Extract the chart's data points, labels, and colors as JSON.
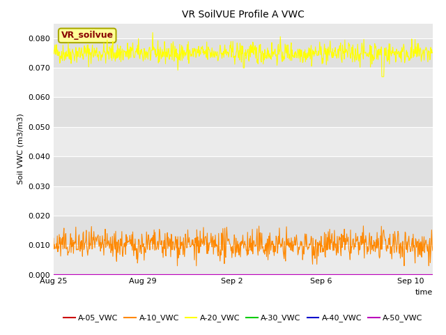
{
  "title": "VR SoilVUE Profile A VWC",
  "ylabel": "Soil VWC (m3/m3)",
  "xlabel": "time",
  "ylim": [
    0.0,
    0.085
  ],
  "yticks": [
    0.0,
    0.01,
    0.02,
    0.03,
    0.04,
    0.05,
    0.06,
    0.07,
    0.08
  ],
  "xtick_labels": [
    "Aug 25",
    "Aug 29",
    "Sep 2",
    "Sep 6",
    "Sep 10"
  ],
  "xtick_positions": [
    0,
    4,
    8,
    12,
    16
  ],
  "xlim": [
    0,
    17
  ],
  "legend_labels": [
    "A-05_VWC",
    "A-10_VWC",
    "A-20_VWC",
    "A-30_VWC",
    "A-40_VWC",
    "A-50_VWC"
  ],
  "legend_colors": [
    "#cc0000",
    "#ff8800",
    "#ffff00",
    "#00cc00",
    "#0000cc",
    "#bb00bb"
  ],
  "annotation_text": "VR_soilvue",
  "annotation_color": "#880000",
  "annotation_bg": "#ffff99",
  "annotation_edge": "#aaaa00",
  "bg_color": "#e8e8e8",
  "band_color_light": "#ebebeb",
  "band_color_dark": "#e0e0e0",
  "fig_bg": "#ffffff",
  "n_points": 800,
  "seed": 42,
  "a20_base": 0.075,
  "a20_std": 0.0018,
  "a10_base": 0.01,
  "a10_std": 0.0025,
  "a50_val": 0.0001,
  "title_fontsize": 10,
  "tick_fontsize": 8,
  "label_fontsize": 8,
  "legend_fontsize": 8
}
